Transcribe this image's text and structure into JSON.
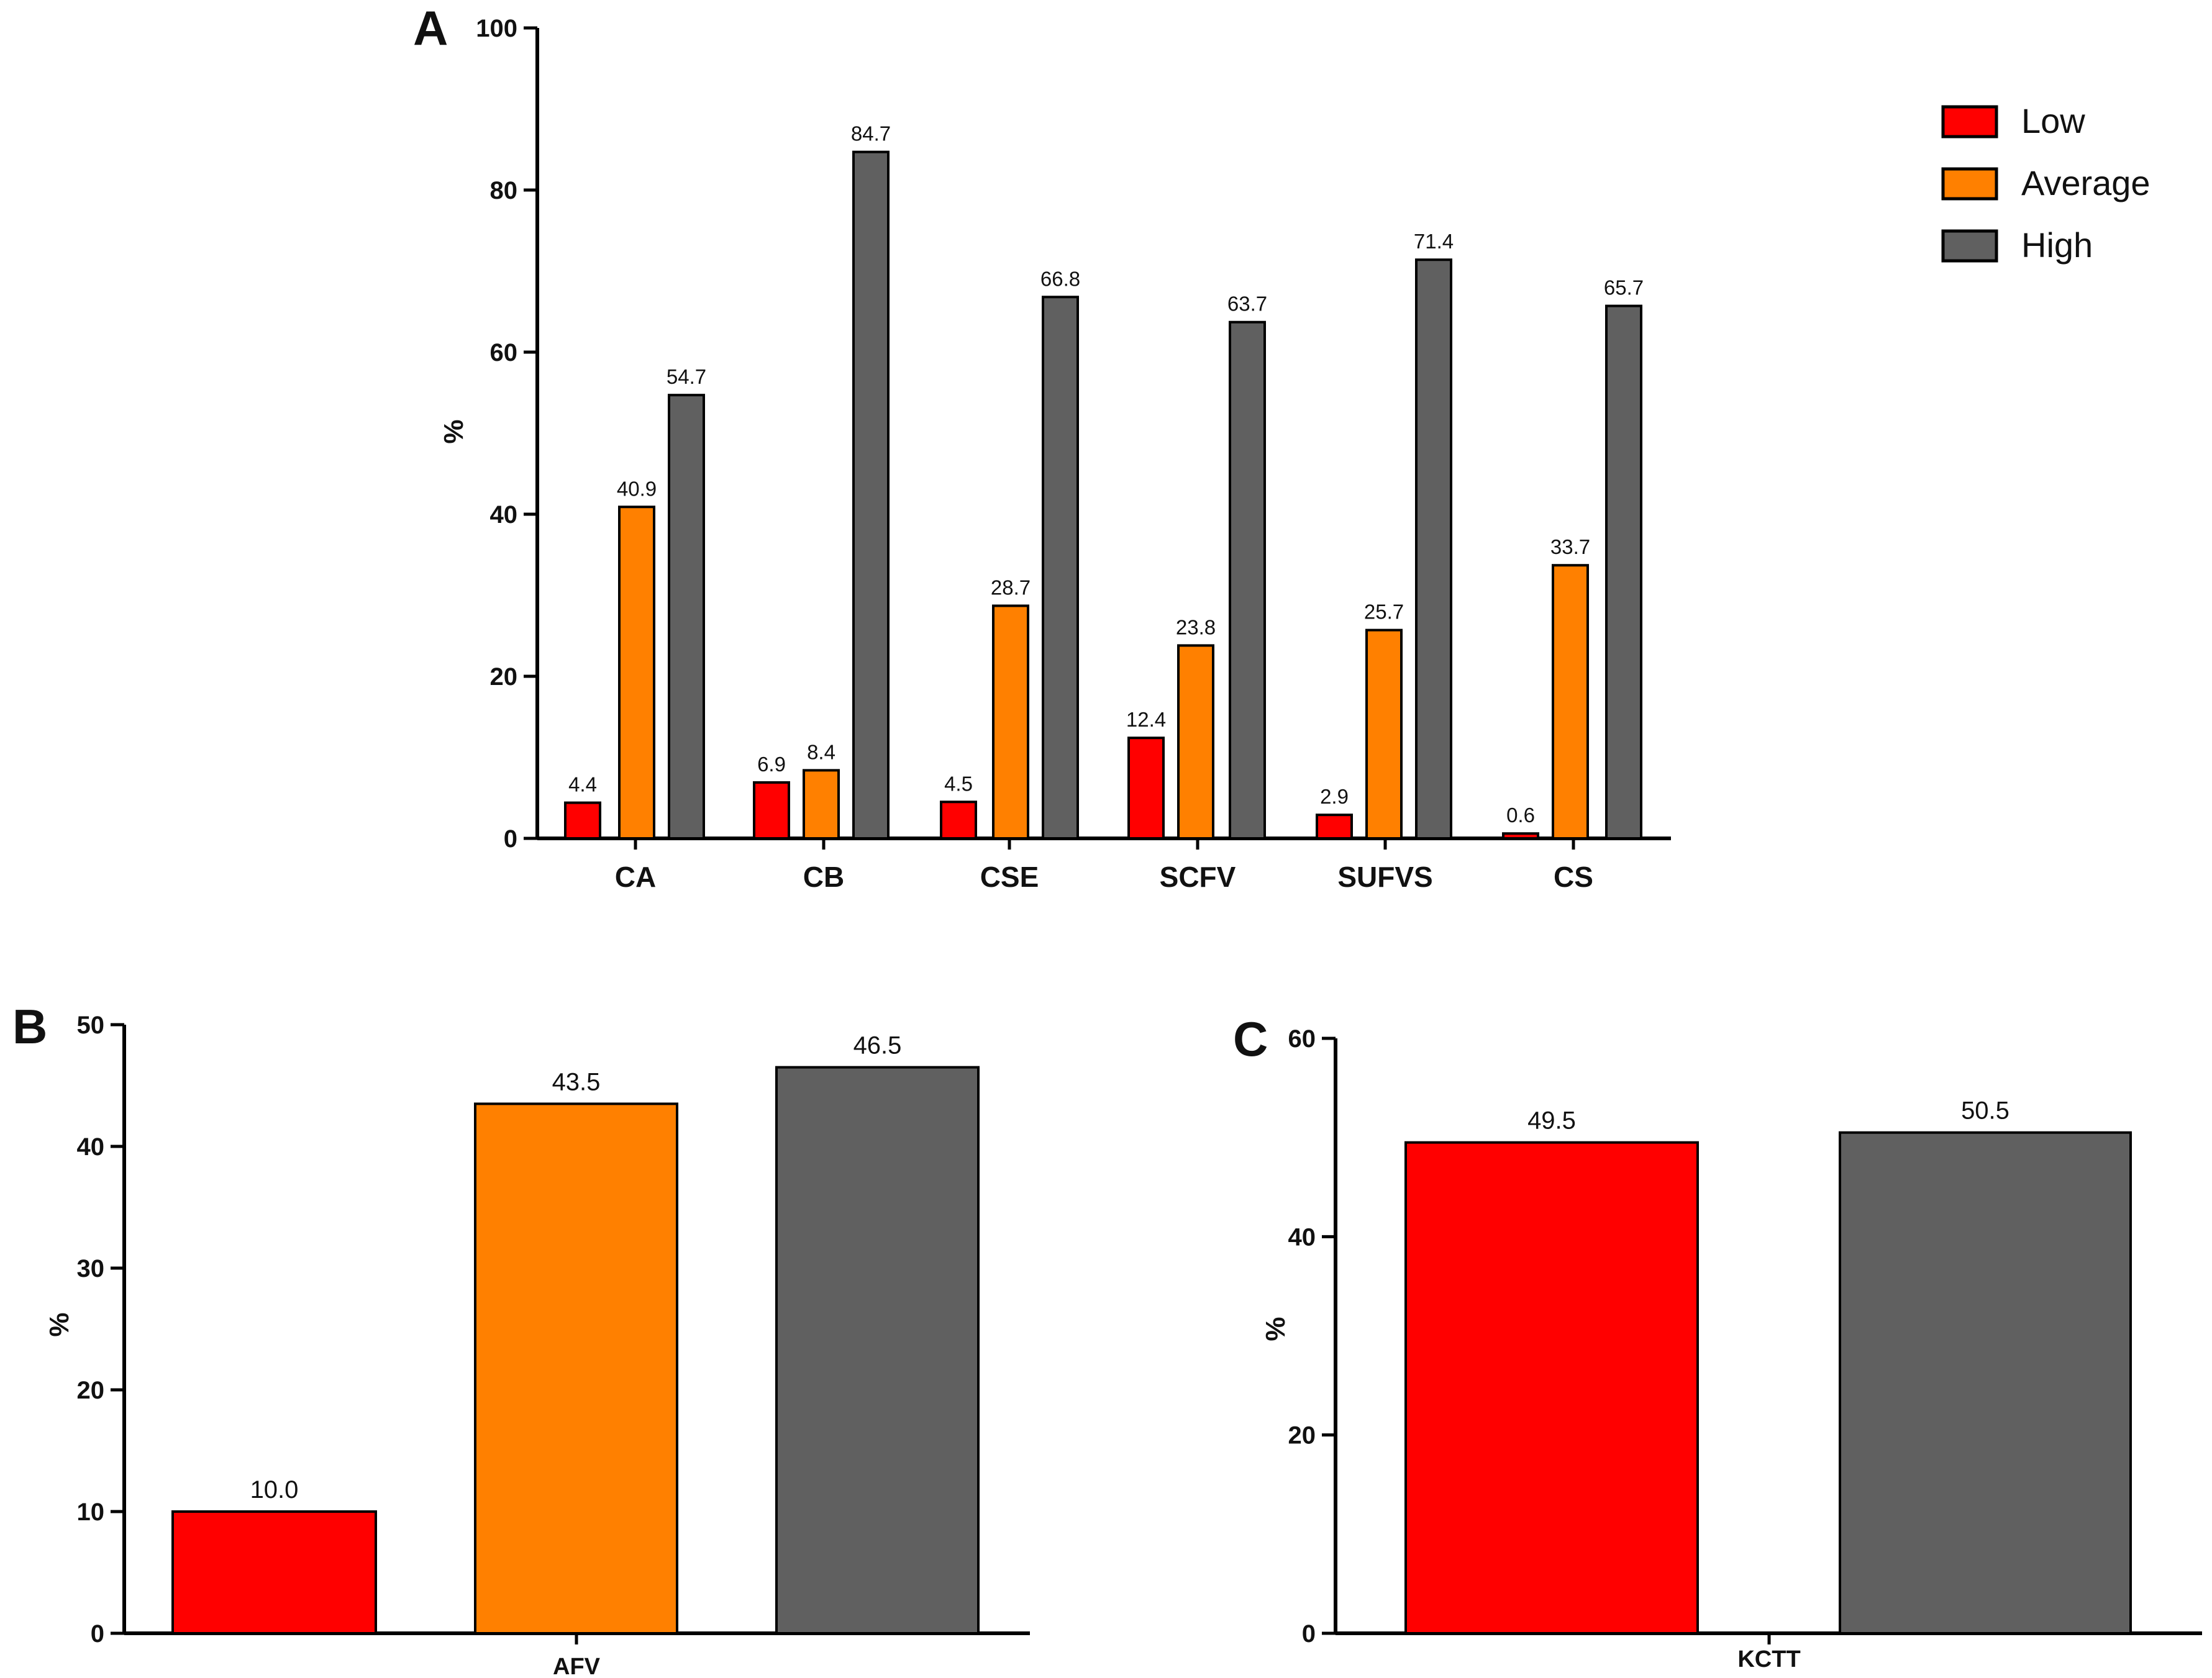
{
  "colors": {
    "Low": "#ff0000",
    "Average": "#ff8000",
    "High": "#606060"
  },
  "chart_data": [
    {
      "panel": "A",
      "type": "bar",
      "categories": [
        "CA",
        "CB",
        "CSE",
        "SCFV",
        "SUFVS",
        "CS"
      ],
      "series": [
        {
          "name": "Low",
          "values": [
            4.4,
            6.9,
            4.5,
            12.4,
            2.9,
            0.6
          ]
        },
        {
          "name": "Average",
          "values": [
            40.9,
            8.4,
            28.7,
            23.8,
            25.7,
            33.7
          ]
        },
        {
          "name": "High",
          "values": [
            54.7,
            84.7,
            66.8,
            63.7,
            71.4,
            65.7
          ]
        }
      ],
      "value_labels": [
        [
          "4.4",
          "6.9",
          "4.5",
          "12.4",
          "2.9",
          "0.6"
        ],
        [
          "40.9",
          "8.4",
          "28.7",
          "23.8",
          "25.7",
          "33.7"
        ],
        [
          "54.7",
          "84.7",
          "66.8",
          "63.7",
          "71.4",
          "65.7"
        ]
      ],
      "ylabel": "%",
      "ylim": [
        0,
        100
      ],
      "yticks": [
        "0",
        "20",
        "40",
        "60",
        "80",
        "100"
      ],
      "legend": [
        "Low",
        "Average",
        "High"
      ],
      "legend_position": "top-right"
    },
    {
      "panel": "B",
      "type": "bar",
      "categories": [
        "AFV"
      ],
      "series": [
        {
          "name": "Low",
          "values": [
            10.0
          ]
        },
        {
          "name": "Average",
          "values": [
            43.5
          ]
        },
        {
          "name": "High",
          "values": [
            46.5
          ]
        }
      ],
      "value_labels": [
        [
          "10.0"
        ],
        [
          "43.5"
        ],
        [
          "46.5"
        ]
      ],
      "ylabel": "%",
      "ylim": [
        0,
        50
      ],
      "yticks": [
        "0",
        "10",
        "20",
        "30",
        "40",
        "50"
      ]
    },
    {
      "panel": "C",
      "type": "bar",
      "categories": [
        "KCTT"
      ],
      "series": [
        {
          "name": "Low",
          "values": [
            49.5
          ]
        },
        {
          "name": "High",
          "values": [
            50.5
          ]
        }
      ],
      "value_labels": [
        [
          "49.5"
        ],
        [
          "50.5"
        ]
      ],
      "ylabel": "%",
      "ylim": [
        0,
        60
      ],
      "yticks": [
        "0",
        "20",
        "40",
        "60"
      ]
    }
  ]
}
